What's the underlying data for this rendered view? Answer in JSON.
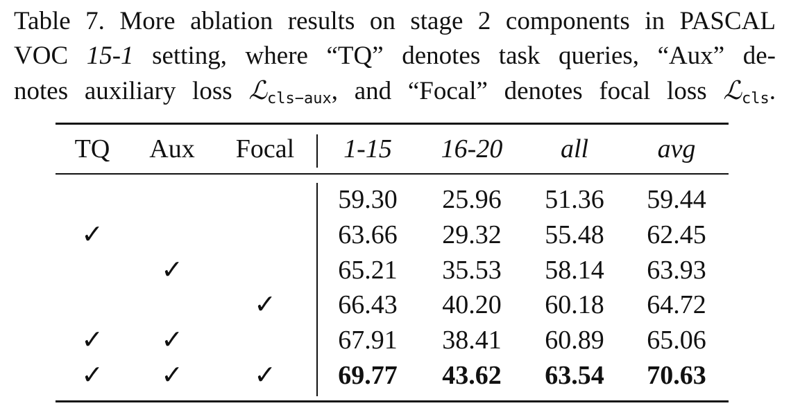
{
  "caption": {
    "lines": [
      [
        "Table 7. More ablation results on stage 2 components in PASCAL"
      ],
      [
        "VOC ",
        "15-1",
        " setting, where “TQ” denotes task queries, “Aux” de-"
      ],
      [
        "notes auxiliary loss ",
        "ℒ",
        "cls−aux",
        ", and “Focal” denotes focal loss ",
        "ℒ",
        "cls",
        "."
      ]
    ]
  },
  "table": {
    "header": [
      "TQ",
      "Aux",
      "Focal",
      "1-15",
      "16-20",
      "all",
      "avg"
    ],
    "rows": [
      [
        null,
        null,
        null,
        "59.30",
        "25.96",
        "51.36",
        "59.44"
      ],
      [
        "✓",
        null,
        null,
        "63.66",
        "29.32",
        "55.48",
        "62.45"
      ],
      [
        null,
        "✓",
        null,
        "65.21",
        "35.53",
        "58.14",
        "63.93"
      ],
      [
        null,
        null,
        "✓",
        "66.43",
        "40.20",
        "60.18",
        "64.72"
      ],
      [
        "✓",
        "✓",
        null,
        "67.91",
        "38.41",
        "60.89",
        "65.06"
      ],
      [
        "✓",
        "✓",
        "✓",
        "69.77",
        "43.62",
        "63.54",
        "70.63"
      ]
    ]
  }
}
